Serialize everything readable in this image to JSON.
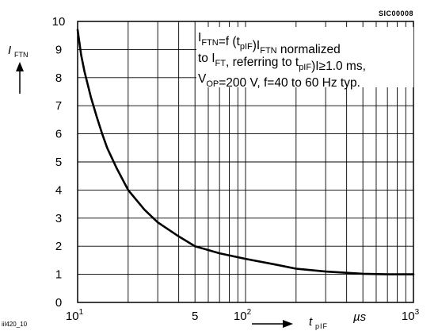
{
  "chart_data": {
    "type": "line",
    "code": "SIC00008",
    "figure_id": "iil420_10",
    "annotation_lines": [
      [
        {
          "t": "I"
        },
        {
          "t": "FTN",
          "sub": true
        },
        {
          "t": "=f (t"
        },
        {
          "t": "pIF",
          "sub": true
        },
        {
          "t": ")I"
        },
        {
          "t": "FTN",
          "sub": true
        },
        {
          "t": " normalized"
        }
      ],
      [
        {
          "t": "to I"
        },
        {
          "t": "FT",
          "sub": true
        },
        {
          "t": ", referring to t"
        },
        {
          "t": "pIF",
          "sub": true
        },
        {
          "t": ")I≥1.0 ms,"
        }
      ],
      [
        {
          "t": "V"
        },
        {
          "t": "OP",
          "sub": true
        },
        {
          "t": "=200 V, f=40 to 60 Hz typ."
        }
      ]
    ],
    "ylabel": {
      "main": "I",
      "sub": "FTN"
    },
    "xlabel": {
      "main": "t",
      "sub": "pIF"
    },
    "xunit": "µs",
    "xscale": "log",
    "xlim": [
      10,
      1000
    ],
    "ylim": [
      0,
      10
    ],
    "grid": true,
    "x_ticks": [
      {
        "value": 10,
        "base": "10",
        "exp": "1"
      },
      {
        "value": 50,
        "base": "5",
        "exp": ""
      },
      {
        "value": 100,
        "base": "10",
        "exp": "2"
      },
      {
        "value": 1000,
        "base": "10",
        "exp": "3"
      }
    ],
    "y_ticks": [
      "0",
      "1",
      "2",
      "3",
      "4",
      "5",
      "6",
      "7",
      "8",
      "9",
      "10"
    ],
    "series": [
      {
        "x": [
          10,
          10.5,
          11,
          12,
          13,
          14,
          15,
          17,
          20,
          25,
          30,
          40,
          50,
          70,
          100,
          150,
          200,
          300,
          500,
          700,
          1000
        ],
        "y": [
          9.7,
          8.8,
          8.2,
          7.3,
          6.6,
          6.0,
          5.5,
          4.8,
          4.0,
          3.3,
          2.85,
          2.35,
          2.0,
          1.75,
          1.55,
          1.35,
          1.2,
          1.1,
          1.02,
          1.0,
          1.0
        ]
      }
    ]
  }
}
